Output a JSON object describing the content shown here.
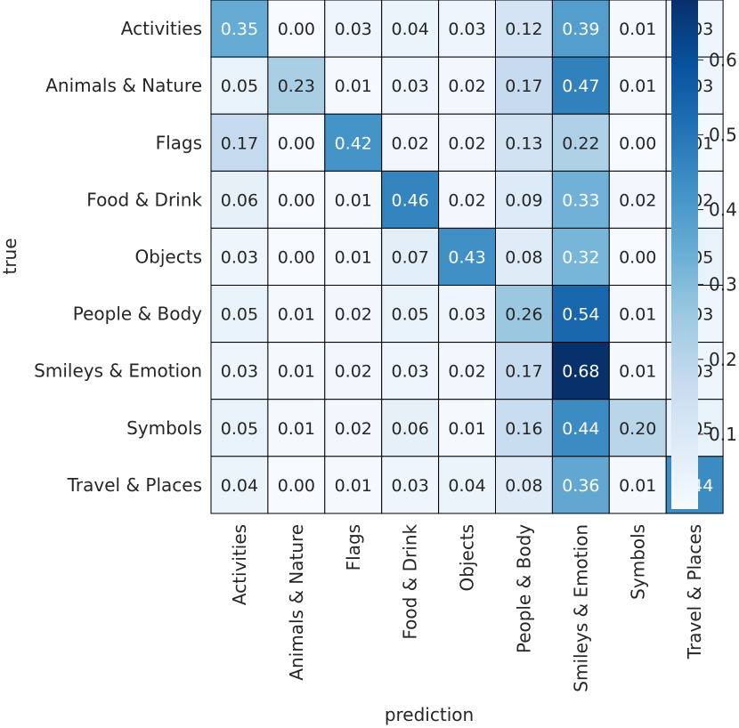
{
  "chart_data": {
    "type": "heatmap",
    "title": "",
    "xlabel": "prediction",
    "ylabel": "true",
    "x_categories": [
      "Activities",
      "Animals & Nature",
      "Flags",
      "Food & Drink",
      "Objects",
      "People & Body",
      "Smileys & Emotion",
      "Symbols",
      "Travel & Places"
    ],
    "y_categories": [
      "Activities",
      "Animals & Nature",
      "Flags",
      "Food & Drink",
      "Objects",
      "People & Body",
      "Smileys & Emotion",
      "Symbols",
      "Travel & Places"
    ],
    "values": [
      [
        0.35,
        0.0,
        0.03,
        0.04,
        0.03,
        0.12,
        0.39,
        0.01,
        0.03
      ],
      [
        0.05,
        0.23,
        0.01,
        0.03,
        0.02,
        0.17,
        0.47,
        0.01,
        0.03
      ],
      [
        0.17,
        0.0,
        0.42,
        0.02,
        0.02,
        0.13,
        0.22,
        0.0,
        0.01
      ],
      [
        0.06,
        0.0,
        0.01,
        0.46,
        0.02,
        0.09,
        0.33,
        0.02,
        0.02
      ],
      [
        0.03,
        0.0,
        0.01,
        0.07,
        0.43,
        0.08,
        0.32,
        0.0,
        0.05
      ],
      [
        0.05,
        0.01,
        0.02,
        0.05,
        0.03,
        0.26,
        0.54,
        0.01,
        0.03
      ],
      [
        0.03,
        0.01,
        0.02,
        0.03,
        0.02,
        0.17,
        0.68,
        0.01,
        0.03
      ],
      [
        0.05,
        0.01,
        0.02,
        0.06,
        0.01,
        0.16,
        0.44,
        0.2,
        0.05
      ],
      [
        0.04,
        0.0,
        0.01,
        0.03,
        0.04,
        0.08,
        0.36,
        0.01,
        0.44
      ]
    ],
    "value_format": "2 decimals",
    "colormap": "Blues",
    "color_min": "#f7fbff",
    "color_max": "#08306b",
    "cell_border_color": "#000000",
    "colorbar": {
      "range": [
        0.0,
        0.68
      ],
      "ticks": [
        0.1,
        0.2,
        0.3,
        0.4,
        0.5,
        0.6
      ],
      "tick_labels": [
        "0.1",
        "0.2",
        "0.3",
        "0.4",
        "0.5",
        "0.6"
      ],
      "placement": "right"
    },
    "text_color_dark": "#262626",
    "text_color_light": "#ffffff"
  }
}
